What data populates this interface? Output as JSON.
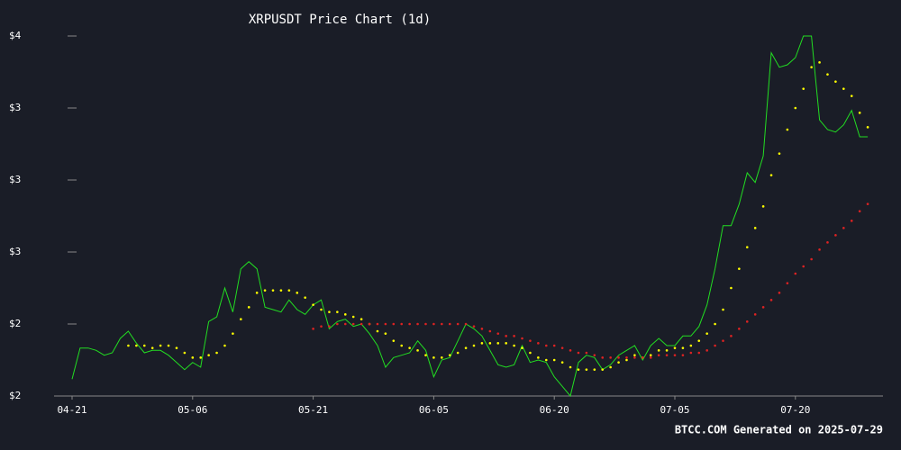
{
  "chart_data": {
    "type": "line",
    "title": "XRPUSDT Price Chart (1d)",
    "footer": "BTCC.COM Generated on 2025-07-29",
    "categories": [
      "04-21",
      null,
      null,
      null,
      null,
      null,
      null,
      null,
      null,
      null,
      null,
      null,
      null,
      null,
      null,
      "05-06",
      null,
      null,
      null,
      null,
      null,
      null,
      null,
      null,
      null,
      null,
      null,
      null,
      null,
      null,
      "05-21",
      null,
      null,
      null,
      null,
      null,
      null,
      null,
      null,
      null,
      null,
      null,
      null,
      null,
      null,
      "06-05",
      null,
      null,
      null,
      null,
      null,
      null,
      null,
      null,
      null,
      null,
      null,
      null,
      null,
      null,
      "06-20",
      null,
      null,
      null,
      null,
      null,
      null,
      null,
      null,
      null,
      null,
      null,
      null,
      null,
      null,
      "07-05",
      null,
      null,
      null,
      null,
      null,
      null,
      null,
      null,
      null,
      null,
      null,
      null,
      null,
      null,
      "07-20",
      null,
      null,
      null,
      null,
      null,
      null,
      null,
      null,
      null
    ],
    "series": [
      {
        "color": "#22dd22",
        "mark": "line",
        "values": [
          2.07,
          2.2,
          2.2,
          2.19,
          2.17,
          2.18,
          2.24,
          2.27,
          2.22,
          2.18,
          2.19,
          2.19,
          2.17,
          2.14,
          2.11,
          2.14,
          2.12,
          2.31,
          2.33,
          2.45,
          2.35,
          2.53,
          2.56,
          2.53,
          2.37,
          2.36,
          2.35,
          2.4,
          2.36,
          2.34,
          2.38,
          2.4,
          2.28,
          2.31,
          2.32,
          2.29,
          2.3,
          2.26,
          2.21,
          2.12,
          2.16,
          2.17,
          2.18,
          2.23,
          2.19,
          2.08,
          2.15,
          2.16,
          2.23,
          2.3,
          2.28,
          2.25,
          2.19,
          2.13,
          2.12,
          2.13,
          2.21,
          2.14,
          2.15,
          2.14,
          2.08,
          2.04,
          2.0,
          2.14,
          2.17,
          2.16,
          2.11,
          2.13,
          2.17,
          2.19,
          2.21,
          2.15,
          2.21,
          2.24,
          2.21,
          2.21,
          2.25,
          2.25,
          2.29,
          2.38,
          2.53,
          2.71,
          2.71,
          2.8,
          2.93,
          2.89,
          3.0,
          3.43,
          3.37,
          3.38,
          3.41,
          3.5,
          3.5,
          3.15,
          3.11,
          3.1,
          3.13,
          3.19,
          3.08,
          3.08
        ]
      },
      {
        "color": "#ffff00",
        "mark": "dot",
        "values": [
          null,
          null,
          null,
          null,
          null,
          null,
          null,
          2.21,
          2.21,
          2.21,
          2.2,
          2.21,
          2.21,
          2.2,
          2.18,
          2.16,
          2.16,
          2.17,
          2.18,
          2.21,
          2.26,
          2.32,
          2.37,
          2.43,
          2.44,
          2.44,
          2.44,
          2.44,
          2.43,
          2.41,
          2.38,
          2.36,
          2.35,
          2.35,
          2.34,
          2.33,
          2.32,
          2.3,
          2.27,
          2.26,
          2.23,
          2.21,
          2.2,
          2.19,
          2.17,
          2.16,
          2.16,
          2.17,
          2.18,
          2.2,
          2.21,
          2.22,
          2.22,
          2.22,
          2.22,
          2.21,
          2.2,
          2.18,
          2.16,
          2.15,
          2.15,
          2.14,
          2.12,
          2.11,
          2.11,
          2.11,
          2.11,
          2.12,
          2.14,
          2.15,
          2.17,
          2.16,
          2.17,
          2.19,
          2.19,
          2.2,
          2.2,
          2.21,
          2.23,
          2.26,
          2.3,
          2.36,
          2.45,
          2.53,
          2.62,
          2.7,
          2.79,
          2.92,
          3.01,
          3.11,
          3.2,
          3.28,
          3.37,
          3.39,
          3.34,
          3.31,
          3.28,
          3.25,
          3.18,
          3.12
        ]
      },
      {
        "color": "#dd2222",
        "mark": "dot",
        "values": [
          null,
          null,
          null,
          null,
          null,
          null,
          null,
          null,
          null,
          null,
          null,
          null,
          null,
          null,
          null,
          null,
          null,
          null,
          null,
          null,
          null,
          null,
          null,
          null,
          null,
          null,
          null,
          null,
          null,
          null,
          2.28,
          2.29,
          2.29,
          2.3,
          2.3,
          2.3,
          2.3,
          2.3,
          2.3,
          2.3,
          2.3,
          2.3,
          2.3,
          2.3,
          2.3,
          2.3,
          2.3,
          2.3,
          2.3,
          2.3,
          2.29,
          2.28,
          2.27,
          2.26,
          2.25,
          2.25,
          2.24,
          2.23,
          2.22,
          2.21,
          2.21,
          2.2,
          2.19,
          2.18,
          2.18,
          2.17,
          2.16,
          2.16,
          2.16,
          2.16,
          2.16,
          2.16,
          2.16,
          2.17,
          2.17,
          2.17,
          2.17,
          2.18,
          2.18,
          2.19,
          2.21,
          2.23,
          2.25,
          2.28,
          2.31,
          2.34,
          2.37,
          2.4,
          2.43,
          2.47,
          2.51,
          2.54,
          2.57,
          2.61,
          2.64,
          2.67,
          2.7,
          2.73,
          2.77,
          2.8
        ]
      }
    ],
    "ylim": [
      2.0,
      3.5
    ],
    "yticks": [
      {
        "value": 2.0,
        "label": "$2"
      },
      {
        "value": 2.3,
        "label": "$2"
      },
      {
        "value": 2.6,
        "label": "$3"
      },
      {
        "value": 2.9,
        "label": "$3"
      },
      {
        "value": 3.2,
        "label": "$3"
      },
      {
        "value": 3.5,
        "label": "$4"
      }
    ]
  }
}
